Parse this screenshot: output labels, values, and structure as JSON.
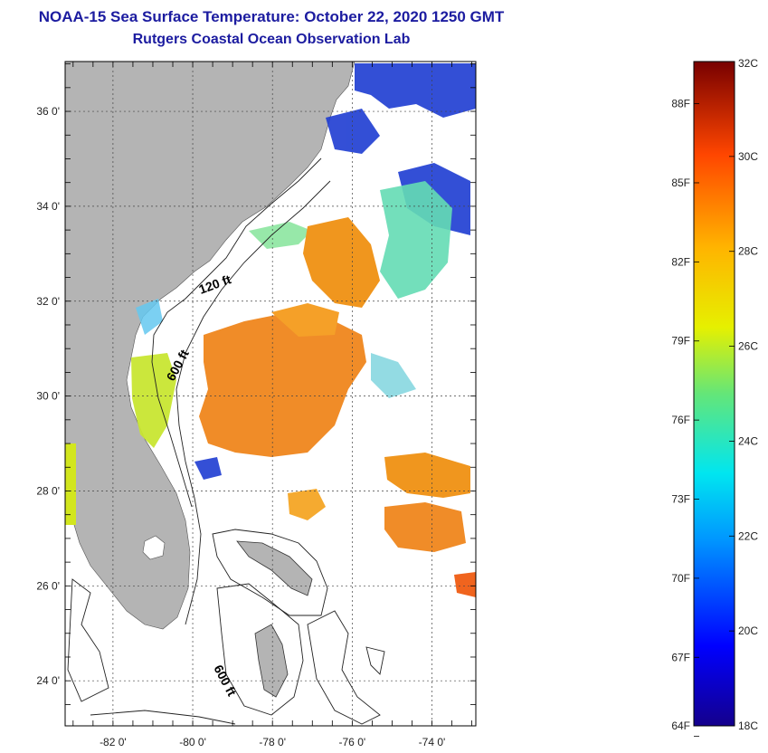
{
  "header": {
    "title_line1": "NOAA-15 Sea Surface Temperature:  October 22, 2020 1250 GMT",
    "title_line2": "Rutgers Coastal Ocean Observation Lab"
  },
  "map": {
    "lat_ticks": [
      {
        "value": 36,
        "label": "36 0'"
      },
      {
        "value": 34,
        "label": "34 0'"
      },
      {
        "value": 32,
        "label": "32 0'"
      },
      {
        "value": 30,
        "label": "30 0'"
      },
      {
        "value": 28,
        "label": "28 0'"
      },
      {
        "value": 26,
        "label": "26 0'"
      },
      {
        "value": 24,
        "label": "24 0'"
      }
    ],
    "lon_ticks": [
      {
        "value": -82,
        "label": "-82 0'"
      },
      {
        "value": -80,
        "label": "-80 0'"
      },
      {
        "value": -78,
        "label": "-78 0'"
      },
      {
        "value": -76,
        "label": "-76 0'"
      },
      {
        "value": -74,
        "label": "-74 0'"
      }
    ],
    "contour_labels": {
      "shelf_120": "120 ft",
      "shelf_600_north": "600 ft",
      "shelf_600_south": "600 ft"
    },
    "land_color": "#b4b4b4",
    "colors": {
      "warm": "#f08c28",
      "cool": "#1e64ff",
      "mid": "#c8e632"
    }
  },
  "colorbar": {
    "min_c": 18,
    "max_c": 32,
    "celsius_labels": [
      "32C",
      "30C",
      "28C",
      "26C",
      "24C",
      "22C",
      "20C",
      "18C"
    ],
    "fahrenheit_labels": [
      "88F",
      "85F",
      "82F",
      "79F",
      "76F",
      "73F",
      "70F",
      "67F",
      "64F"
    ]
  }
}
